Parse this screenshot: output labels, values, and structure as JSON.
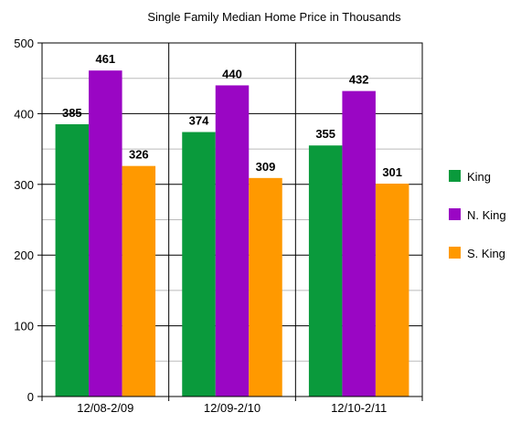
{
  "chart_data": {
    "type": "bar",
    "title": "Single Family Median Home Price in Thousands",
    "xlabel": "",
    "ylabel": "",
    "categories": [
      "12/08-2/09",
      "12/09-2/10",
      "12/10-2/11"
    ],
    "series": [
      {
        "name": "King",
        "values": [
          385,
          374,
          355
        ],
        "color": "#0a9a3c"
      },
      {
        "name": "N. King",
        "values": [
          461,
          440,
          432
        ],
        "color": "#9a06c4"
      },
      {
        "name": "S. King",
        "values": [
          326,
          309,
          301
        ],
        "color": "#ff9900"
      }
    ],
    "ylim": [
      0,
      500
    ],
    "yticks": [
      0,
      100,
      200,
      300,
      400,
      500
    ],
    "grid": true,
    "legend_position": "right"
  }
}
